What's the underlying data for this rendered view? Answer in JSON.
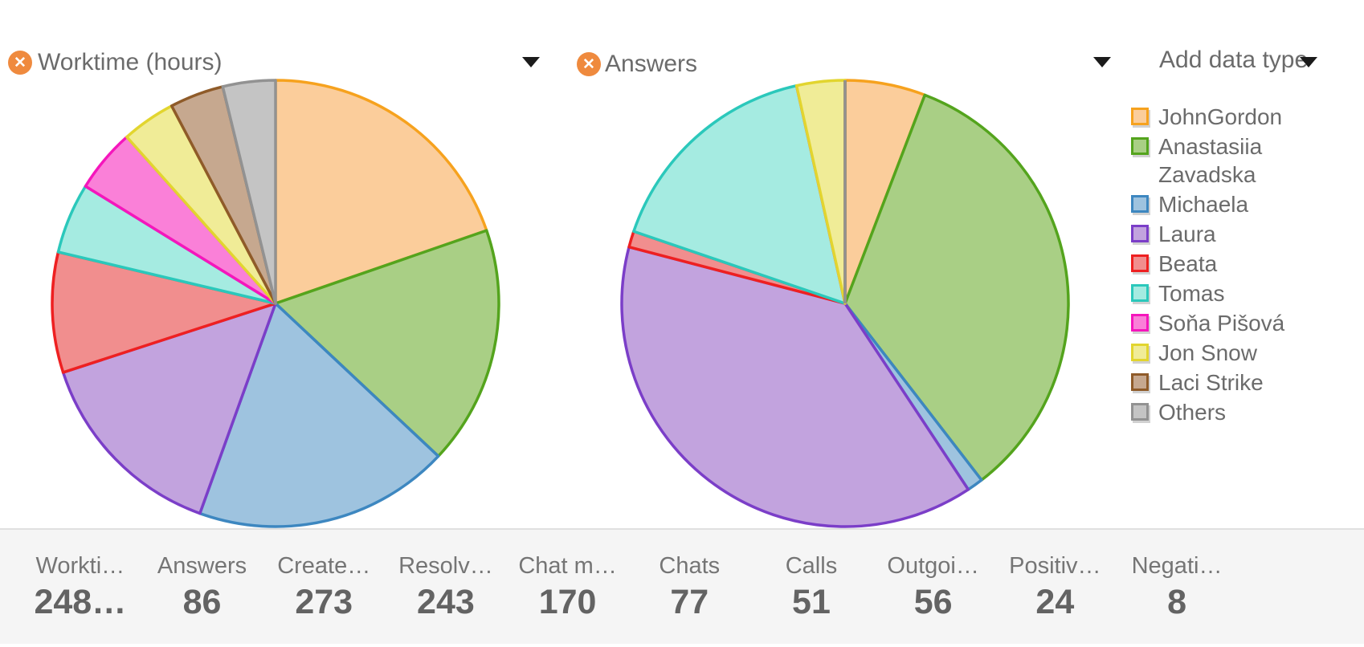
{
  "colors": {
    "accent_orange": "#ef8a3e",
    "title_text": "#6b6b6b",
    "stats_bg": "#f5f5f5",
    "stats_border": "#e0e0e0",
    "caret": "#1b1b1b"
  },
  "icons": {
    "remove": "x-in-orange-circle",
    "dropdown": "caret-down"
  },
  "header": {
    "add_data_type_label": "Add data type"
  },
  "legend": {
    "items": [
      {
        "label": "JohnGordon",
        "fill": "#fbcd9b",
        "stroke": "#f6a21e"
      },
      {
        "label": "Anastasiia Zavadska",
        "fill": "#a9cf85",
        "stroke": "#54a41d"
      },
      {
        "label": "Michaela",
        "fill": "#9ec3df",
        "stroke": "#3d87c0"
      },
      {
        "label": "Laura",
        "fill": "#c2a3de",
        "stroke": "#7b3ec8"
      },
      {
        "label": "Beata",
        "fill": "#f18e8e",
        "stroke": "#ee2021"
      },
      {
        "label": "Tomas",
        "fill": "#a5ebe1",
        "stroke": "#2bc8bb"
      },
      {
        "label": "Soňa Pišová",
        "fill": "#fa80d8",
        "stroke": "#f516bc"
      },
      {
        "label": "Jon Snow",
        "fill": "#f0ec97",
        "stroke": "#e2d52f"
      },
      {
        "label": "Laci Strike",
        "fill": "#c6a88f",
        "stroke": "#8f5b29"
      },
      {
        "label": "Others",
        "fill": "#c4c4c4",
        "stroke": "#929292"
      }
    ]
  },
  "chart_data": [
    {
      "type": "pie",
      "title": "Worktime (hours)",
      "total_display": "248…",
      "value_format": "percent_of_total_estimated_from_slice_angles",
      "start_angle": "top",
      "direction": "clockwise",
      "labels": [
        "JohnGordon",
        "Anastasiia Zavadska",
        "Michaela",
        "Laura",
        "Beata",
        "Tomas",
        "Soňa Pišová",
        "Jon Snow",
        "Laci Strike",
        "Others"
      ],
      "values": [
        19.7,
        17.3,
        18.5,
        14.5,
        8.7,
        5.1,
        4.6,
        3.9,
        3.9,
        3.8
      ]
    },
    {
      "type": "pie",
      "title": "Answers",
      "total": 86,
      "value_format": "count",
      "start_angle": "top",
      "direction": "clockwise",
      "labels": [
        "JohnGordon",
        "Anastasiia Zavadska",
        "Michaela",
        "Laura",
        "Beata",
        "Tomas",
        "Soňa Pišová",
        "Jon Snow",
        "Laci Strike",
        "Others"
      ],
      "values": [
        5,
        29,
        1,
        33,
        1,
        14,
        0,
        3,
        0,
        0
      ]
    }
  ],
  "stats": [
    {
      "label": "Workti…",
      "value": "248…"
    },
    {
      "label": "Answers",
      "value": "86"
    },
    {
      "label": "Create…",
      "value": "273"
    },
    {
      "label": "Resolv…",
      "value": "243"
    },
    {
      "label": "Chat m…",
      "value": "170"
    },
    {
      "label": "Chats",
      "value": "77"
    },
    {
      "label": "Calls",
      "value": "51"
    },
    {
      "label": "Outgoi…",
      "value": "56"
    },
    {
      "label": "Positiv…",
      "value": "24"
    },
    {
      "label": "Negati…",
      "value": "8"
    }
  ]
}
